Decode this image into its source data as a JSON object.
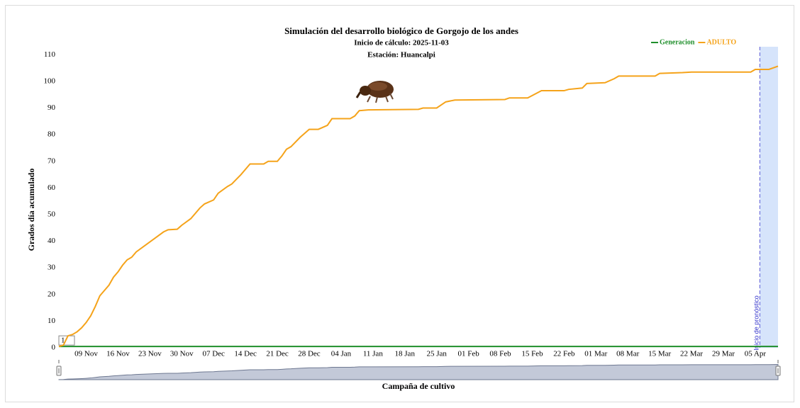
{
  "chart_data": {
    "type": "line",
    "title": "Simulación del desarrollo biológico de Gorgojo de los andes",
    "subtitles": [
      "Inicio de cálculo: 2025-11-03",
      "Estación: Huancalpi"
    ],
    "y_label": "Grados día acumulado",
    "x_label": "Campaña de cultivo",
    "legend": "top-right",
    "x": [
      "03 Nov",
      "04 Nov",
      "05 Nov",
      "06 Nov",
      "07 Nov",
      "08 Nov",
      "09 Nov",
      "10 Nov",
      "11 Nov",
      "12 Nov",
      "13 Nov",
      "14 Nov",
      "15 Nov",
      "16 Nov",
      "17 Nov",
      "18 Nov",
      "19 Nov",
      "20 Nov",
      "22 Nov",
      "24 Nov",
      "26 Nov",
      "27 Nov",
      "29 Nov",
      "30 Nov",
      "02 Dec",
      "04 Dec",
      "05 Dec",
      "07 Dec",
      "08 Dec",
      "10 Dec",
      "11 Dec",
      "13 Dec",
      "15 Dec",
      "18 Dec",
      "19 Dec",
      "21 Dec",
      "22 Dec",
      "23 Dec",
      "24 Dec",
      "26 Dec",
      "28 Dec",
      "30 Dec",
      "01 Jan",
      "02 Jan",
      "06 Jan",
      "07 Jan",
      "08 Jan",
      "10 Jan",
      "21 Jan",
      "22 Jan",
      "25 Jan",
      "27 Jan",
      "29 Jan",
      "09 Feb",
      "10 Feb",
      "14 Feb",
      "17 Feb",
      "22 Feb",
      "23 Feb",
      "26 Feb",
      "27 Feb",
      "03 Mar",
      "05 Mar",
      "06 Mar",
      "14 Mar",
      "15 Mar",
      "20 Mar",
      "22 Mar",
      "04 Apr",
      "05 Apr",
      "08 Apr",
      "10 Apr"
    ],
    "series": [
      {
        "name": "Generacion",
        "color": "#1f8f2b",
        "label": "1",
        "values": [
          0.5,
          0.5,
          0.5,
          0.5,
          0.5,
          0.5,
          0.5,
          0.5,
          0.5,
          0.5,
          0.5,
          0.5,
          0.5,
          0.5,
          0.5,
          0.5,
          0.5,
          0.5,
          0.5,
          0.5,
          0.5,
          0.5,
          0.5,
          0.5,
          0.5,
          0.5,
          0.5,
          0.5,
          0.5,
          0.5,
          0.5,
          0.5,
          0.5,
          0.5,
          0.5,
          0.5,
          0.5,
          0.5,
          0.5,
          0.5,
          0.5,
          0.5,
          0.5,
          0.5,
          0.5,
          0.5,
          0.5,
          0.5,
          0.5,
          0.5,
          0.5,
          0.5,
          0.5,
          0.5,
          0.5,
          0.5,
          0.5,
          0.5,
          0.5,
          0.5,
          0.5,
          0.5,
          0.5,
          0.5,
          0.5,
          0.5,
          0.5,
          0.5,
          0.5,
          0.5,
          0.5,
          0.5
        ]
      },
      {
        "name": "ADULTO",
        "color": "#f5a31a",
        "values": [
          0.5,
          1,
          4.5,
          5,
          6,
          7.5,
          9.5,
          12,
          15.5,
          19.5,
          21.5,
          23.5,
          26.5,
          28.5,
          31,
          33,
          34,
          36,
          38.5,
          41,
          43.5,
          44.3,
          44.5,
          46,
          48.5,
          52.5,
          54,
          55.5,
          58,
          60.5,
          61.5,
          65,
          69,
          69,
          70,
          70,
          72,
          74.5,
          75.5,
          79,
          82,
          82,
          83.5,
          86,
          86,
          87,
          89,
          89.3,
          89.5,
          90,
          90,
          92.3,
          93,
          93.2,
          93.8,
          93.8,
          96.5,
          96.5,
          97,
          97.5,
          99.2,
          99.5,
          101,
          102,
          102,
          103,
          103.3,
          103.5,
          103.5,
          104.5,
          104.5,
          105.7
        ]
      }
    ],
    "xlim": [
      "03 Nov",
      "10 Apr"
    ],
    "xticks": [
      "09 Nov",
      "16 Nov",
      "23 Nov",
      "30 Nov",
      "07 Dec",
      "14 Dec",
      "21 Dec",
      "28 Dec",
      "04 Jan",
      "11 Jan",
      "18 Jan",
      "25 Jan",
      "01 Feb",
      "08 Feb",
      "15 Feb",
      "22 Feb",
      "01 Mar",
      "08 Mar",
      "15 Mar",
      "22 Mar",
      "29 Mar",
      "05 Apr"
    ],
    "ylim": [
      0,
      113
    ],
    "yticks": [
      0,
      10,
      20,
      30,
      40,
      50,
      60,
      70,
      80,
      90,
      100,
      110
    ],
    "grid": false,
    "forecast": {
      "start": "06 Apr",
      "label": "Inicio de pronóstico",
      "color": "#d6e4fb"
    }
  }
}
